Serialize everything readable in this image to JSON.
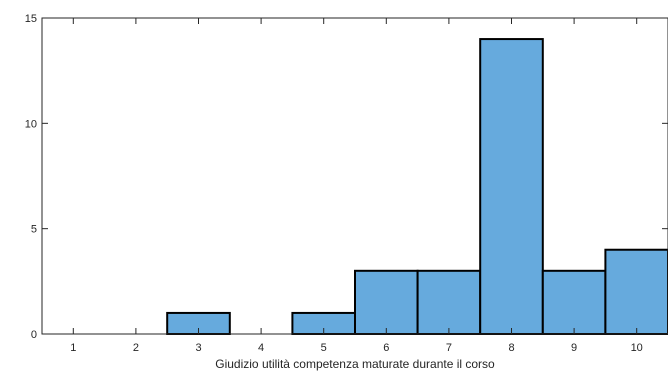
{
  "chart_data": {
    "type": "bar",
    "title": "",
    "xlabel": "Giudizio utilità competenza maturate durante il corso",
    "ylabel": "",
    "categories": [
      "1",
      "2",
      "3",
      "4",
      "5",
      "6",
      "7",
      "8",
      "9",
      "10"
    ],
    "values": [
      0,
      0,
      1,
      0,
      1,
      3,
      3,
      14,
      3,
      4
    ],
    "xlim": [
      0.5,
      10.5
    ],
    "ylim": [
      0,
      15
    ],
    "yticks": [
      "0",
      "5",
      "10",
      "15"
    ],
    "grid": false,
    "legend": "none",
    "bar_color": "#66AADD",
    "edge_color": "#000000"
  }
}
